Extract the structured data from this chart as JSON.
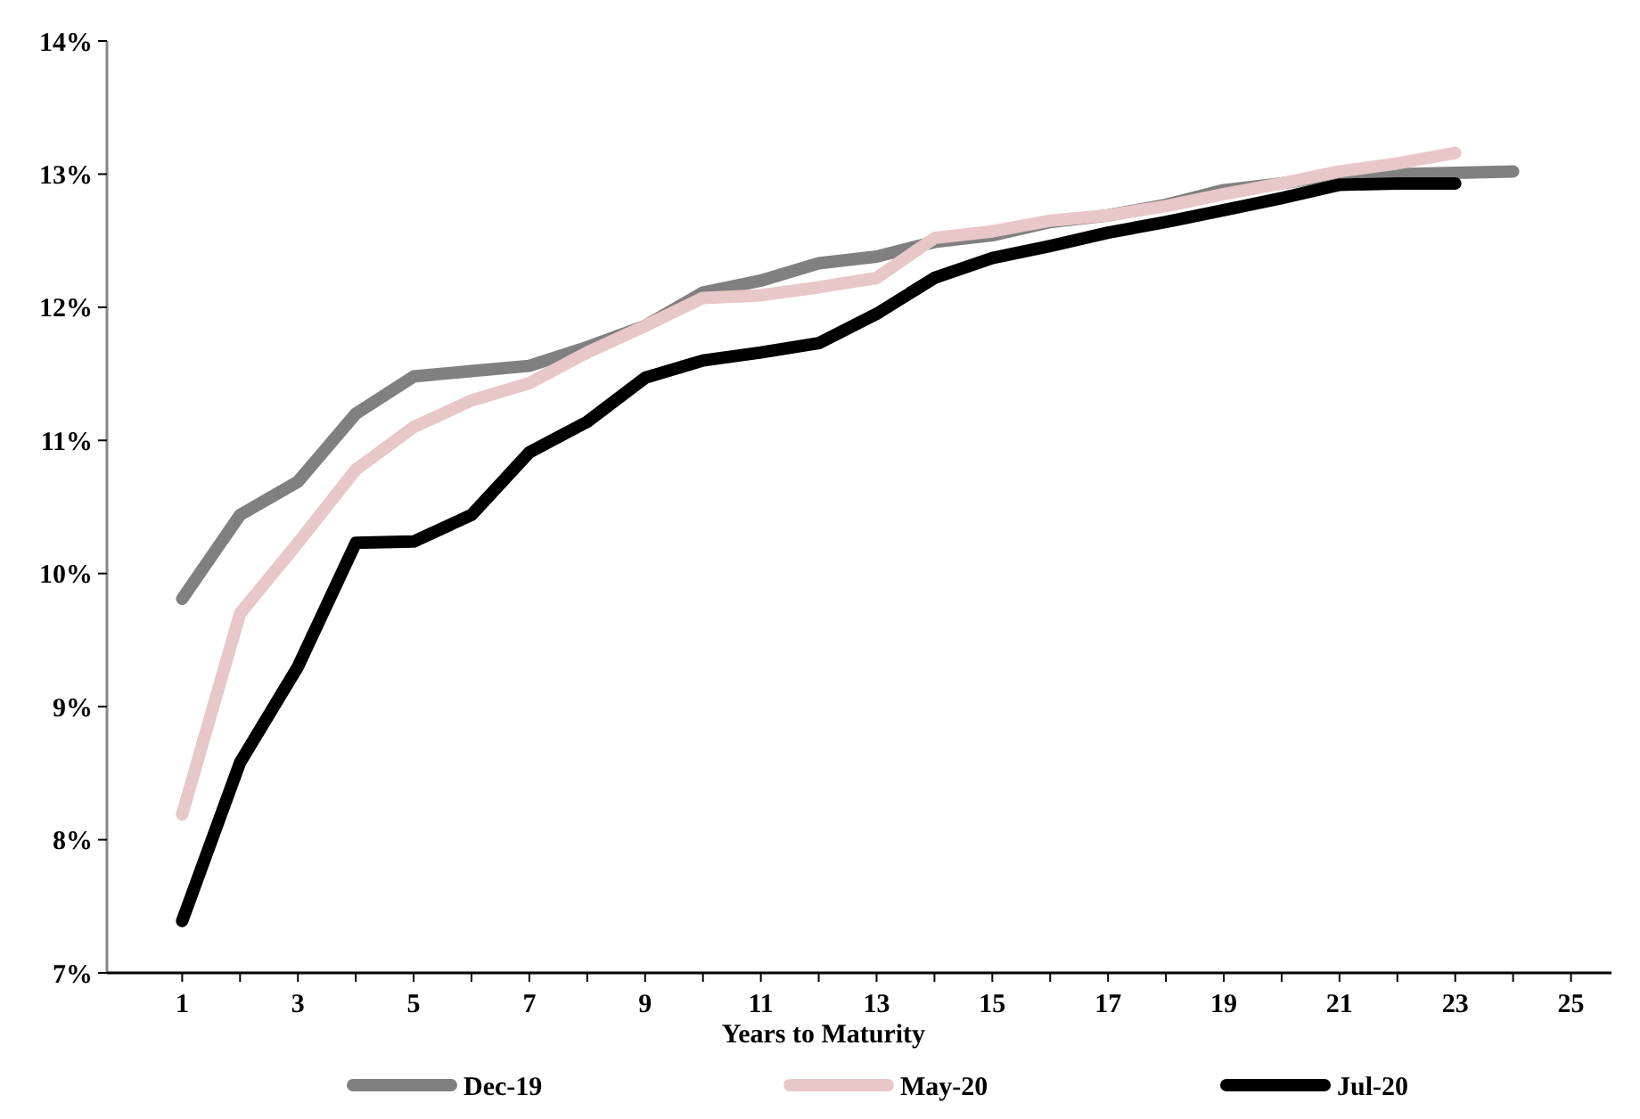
{
  "chart_data": {
    "type": "line",
    "xlabel": "Years to Maturity",
    "x": [
      1,
      2,
      3,
      4,
      5,
      6,
      7,
      8,
      9,
      10,
      11,
      12,
      13,
      14,
      15,
      16,
      17,
      18,
      19,
      20,
      21,
      22,
      23,
      24
    ],
    "series": [
      {
        "name": "Dec-19",
        "color": "#808080",
        "values": [
          9.81,
          10.44,
          10.69,
          11.2,
          11.48,
          11.52,
          11.56,
          11.7,
          11.86,
          12.11,
          12.2,
          12.33,
          12.38,
          12.49,
          12.54,
          12.64,
          12.69,
          12.77,
          12.88,
          12.93,
          13.0,
          13.0,
          13.01,
          13.02
        ]
      },
      {
        "name": "May-20",
        "color": "#e8c7c8",
        "values": [
          8.19,
          9.7,
          10.23,
          10.78,
          11.1,
          11.3,
          11.43,
          11.66,
          11.86,
          12.07,
          12.09,
          12.15,
          12.22,
          12.52,
          12.57,
          12.65,
          12.69,
          12.76,
          12.85,
          12.93,
          13.02,
          13.08,
          13.16,
          null
        ]
      },
      {
        "name": "Jul-20",
        "color": "#000000",
        "values": [
          7.39,
          8.58,
          9.3,
          10.23,
          10.24,
          10.44,
          10.91,
          11.14,
          11.47,
          11.6,
          11.66,
          11.73,
          11.95,
          12.22,
          12.37,
          12.46,
          12.56,
          12.64,
          12.73,
          12.82,
          12.92,
          12.93,
          12.93,
          null
        ]
      }
    ],
    "xlim": [
      -0.3,
      25.7
    ],
    "xticks": [
      1,
      {
        "value": 2,
        "label": null
      },
      3,
      {
        "value": 4,
        "label": null
      },
      5,
      {
        "value": 6,
        "label": null
      },
      7,
      {
        "value": 8,
        "label": null
      },
      9,
      {
        "value": 10,
        "label": null
      },
      11,
      {
        "value": 12,
        "label": null
      },
      13,
      {
        "value": 14,
        "label": null
      },
      15,
      {
        "value": 16,
        "label": null
      },
      17,
      {
        "value": 18,
        "label": null
      },
      19,
      {
        "value": 20,
        "label": null
      },
      21,
      {
        "value": 22,
        "label": null
      },
      23,
      {
        "value": 24,
        "label": null
      },
      25
    ],
    "ylim": [
      7,
      14
    ],
    "yticks": [
      {
        "value": 7,
        "label": "7%"
      },
      {
        "value": 8,
        "label": "8%"
      },
      {
        "value": 9,
        "label": "9%"
      },
      {
        "value": 10,
        "label": "10%"
      },
      {
        "value": 11,
        "label": "11%"
      },
      {
        "value": 12,
        "label": "12%"
      },
      {
        "value": 13,
        "label": "13%"
      },
      {
        "value": 14,
        "label": "14%"
      }
    ],
    "grid": false,
    "legend": "bottom",
    "marker": "none",
    "line_style": "solid"
  }
}
